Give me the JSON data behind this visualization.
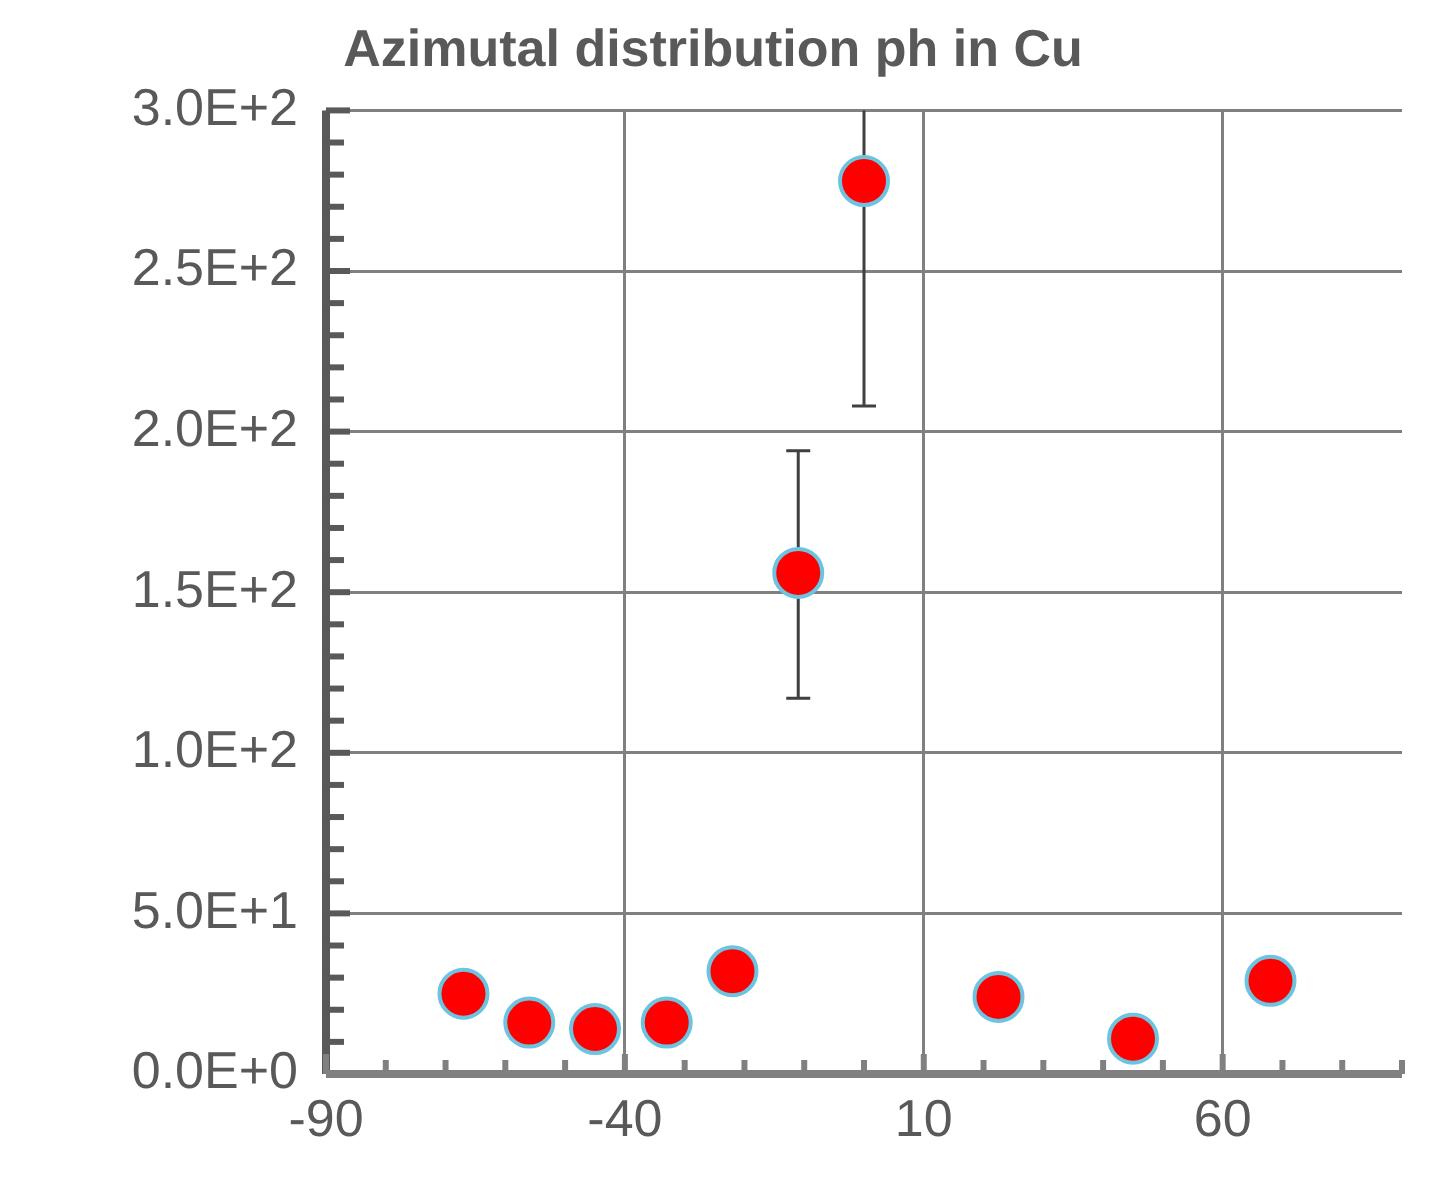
{
  "chart_data": {
    "type": "scatter",
    "title": "Azimutal distribution ph in Cu",
    "x": [
      -67,
      -56,
      -45,
      -33,
      -22,
      -11,
      0,
      22.5,
      45,
      68
    ],
    "values": [
      25,
      16,
      14,
      16,
      32,
      156,
      278,
      24,
      11,
      29
    ],
    "errors": [
      null,
      null,
      null,
      null,
      null,
      [
        117,
        194
      ],
      [
        208,
        300
      ],
      null,
      null,
      null
    ],
    "color": "#ff0000",
    "marker": "circle",
    "xlim": [
      -90,
      90
    ],
    "xticks": [
      -90,
      {
        "value": -80,
        "label": null
      },
      {
        "value": -70,
        "label": null
      },
      {
        "value": -60,
        "label": null
      },
      {
        "value": -50,
        "label": null
      },
      -40,
      {
        "value": -30,
        "label": null
      },
      {
        "value": -20,
        "label": null
      },
      {
        "value": -10,
        "label": null
      },
      {
        "value": 0,
        "label": null
      },
      10,
      {
        "value": 20,
        "label": null
      },
      {
        "value": 30,
        "label": null
      },
      {
        "value": 40,
        "label": null
      },
      {
        "value": 50,
        "label": null
      },
      60,
      {
        "value": 70,
        "label": null
      },
      {
        "value": 80,
        "label": null
      },
      {
        "value": 90,
        "label": null
      }
    ],
    "ylim": [
      0,
      300
    ],
    "yticks": [
      {
        "value": 0,
        "label": "0.0E+0"
      },
      {
        "value": 10,
        "label": null
      },
      {
        "value": 20,
        "label": null
      },
      {
        "value": 30,
        "label": null
      },
      {
        "value": 40,
        "label": null
      },
      {
        "value": 50,
        "label": "5.0E+1"
      },
      {
        "value": 60,
        "label": null
      },
      {
        "value": 70,
        "label": null
      },
      {
        "value": 80,
        "label": null
      },
      {
        "value": 90,
        "label": null
      },
      {
        "value": 100,
        "label": "1.0E+2"
      },
      {
        "value": 110,
        "label": null
      },
      {
        "value": 120,
        "label": null
      },
      {
        "value": 130,
        "label": null
      },
      {
        "value": 140,
        "label": null
      },
      {
        "value": 150,
        "label": "1.5E+2"
      },
      {
        "value": 160,
        "label": null
      },
      {
        "value": 170,
        "label": null
      },
      {
        "value": 180,
        "label": null
      },
      {
        "value": 190,
        "label": null
      },
      {
        "value": 200,
        "label": "2.0E+2"
      },
      {
        "value": 210,
        "label": null
      },
      {
        "value": 220,
        "label": null
      },
      {
        "value": 230,
        "label": null
      },
      {
        "value": 240,
        "label": null
      },
      {
        "value": 250,
        "label": "2.5E+2"
      },
      {
        "value": 260,
        "label": null
      },
      {
        "value": 270,
        "label": null
      },
      {
        "value": 280,
        "label": null
      },
      {
        "value": 290,
        "label": null
      },
      {
        "value": 300,
        "label": "3.0E+2"
      }
    ],
    "grid": true
  }
}
